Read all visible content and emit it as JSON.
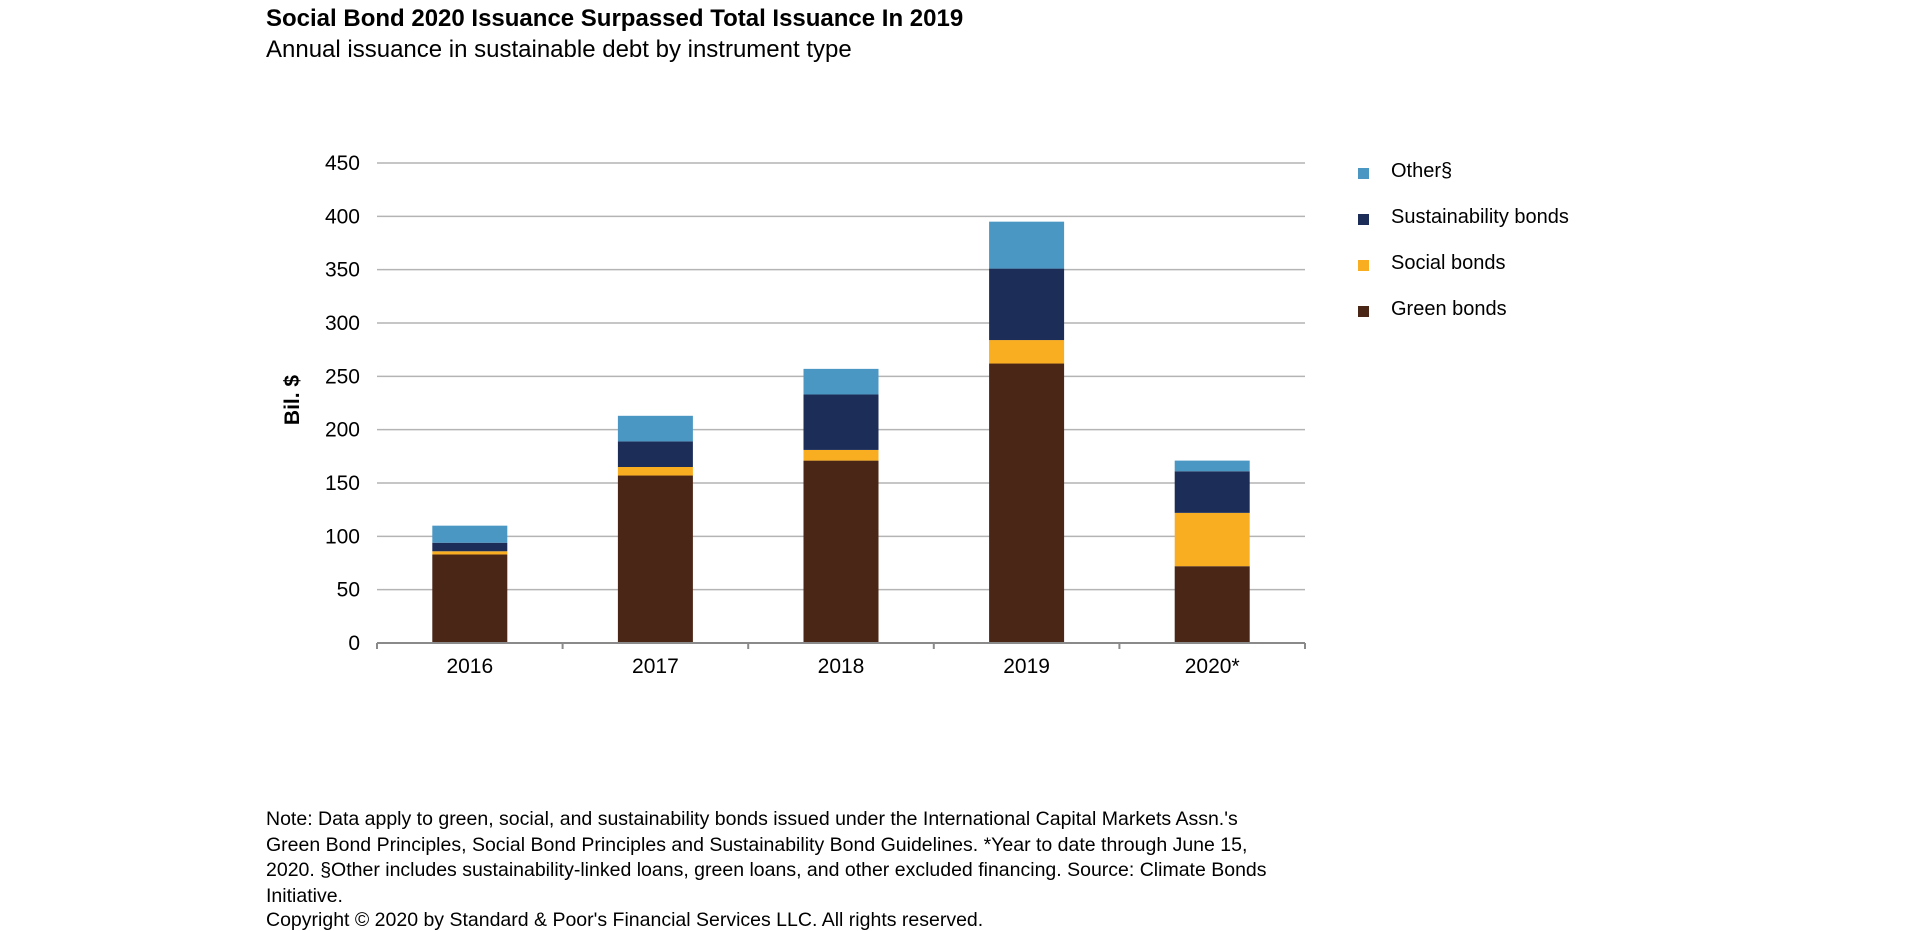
{
  "title": "Social Bond 2020 Issuance Surpassed Total Issuance In 2019",
  "subtitle": "Annual issuance in sustainable debt by instrument type",
  "note": "Note: Data apply to green, social, and sustainability bonds issued under the International Capital Markets Assn.'s Green Bond Principles, Social Bond Principles and Sustainability Bond Guidelines. *Year to date through June 15, 2020. §Other includes sustainability-linked loans, green loans, and other excluded financing. Source: Climate Bonds Initiative.",
  "copyright": "Copyright © 2020 by Standard & Poor's Financial Services LLC. All rights reserved.",
  "chart_data": {
    "type": "bar",
    "stacked": true,
    "categories": [
      "2016",
      "2017",
      "2018",
      "2019",
      "2020*"
    ],
    "series": [
      {
        "name": "Green bonds",
        "color": "#4a2616",
        "values": [
          83,
          157,
          171,
          262,
          72
        ]
      },
      {
        "name": "Social bonds",
        "color": "#f9ad21",
        "values": [
          3,
          8,
          10,
          22,
          50
        ]
      },
      {
        "name": "Sustainability bonds",
        "color": "#1c2d57",
        "values": [
          8,
          24,
          52,
          67,
          39
        ]
      },
      {
        "name": "Other§",
        "color": "#4b97c3",
        "values": [
          16,
          24,
          24,
          44,
          10
        ]
      }
    ],
    "ylabel": "Bil. $",
    "xlabel": "",
    "ylim": [
      0,
      450
    ],
    "yticks": [
      0,
      50,
      100,
      150,
      200,
      250,
      300,
      350,
      400,
      450
    ],
    "grid": true,
    "legend_position": "right"
  }
}
